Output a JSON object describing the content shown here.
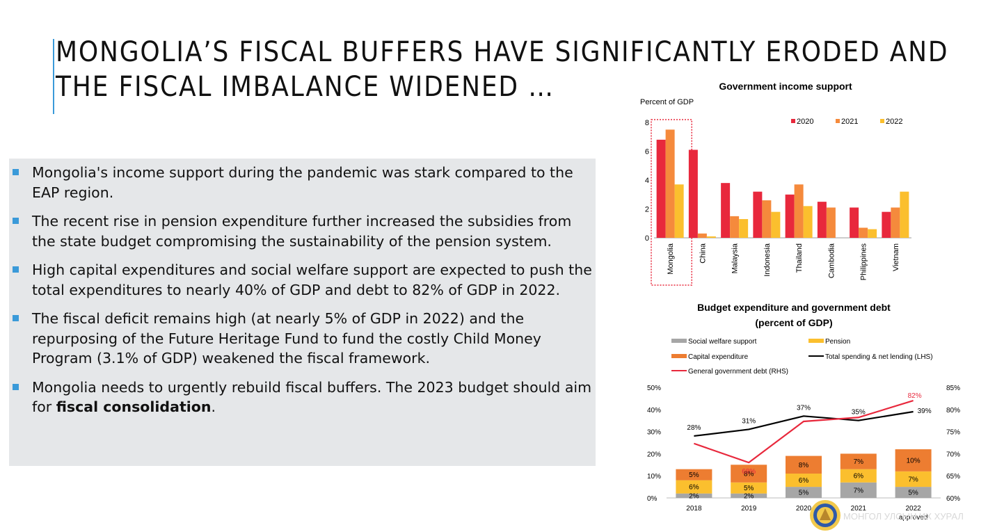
{
  "slide": {
    "title_line1": "MONGOLIA’S FISCAL BUFFERS HAVE SIGNIFICANTLY ERODED AND",
    "title_line2": "THE FISCAL IMBALANCE WIDENED …",
    "accent_color": "#3a9ad9",
    "bullets": [
      {
        "text": "Mongolia's income support during the pandemic was stark compared to the EAP region."
      },
      {
        "text": "The recent rise in pension expenditure further increased the subsidies from the state budget compromising the sustainability of the pension system."
      },
      {
        "text": "High capital expenditures and social welfare support are expected to push the total expenditures to nearly 40% of GDP and debt to 82% of GDP in 2022."
      },
      {
        "text": "The fiscal deficit remains high (at nearly 5% of GDP in 2022) and the repurposing of the Future Heritage Fund to fund the costly Child Money Program (3.1% of GDP) weakened the fiscal framework."
      },
      {
        "text_before": "Mongolia needs to urgently rebuild fiscal buffers. The 2023 budget should aim for ",
        "text_bold": "fiscal consolidation",
        "text_after": "."
      }
    ],
    "watermark_text": "МОНГОЛ УЛСЫН ИХ ХУРАЛ"
  },
  "chart_data": [
    {
      "type": "bar",
      "title": "Government income support",
      "ylabel": "Percent of GDP",
      "ylim": [
        0,
        8
      ],
      "yticks": [
        0,
        2,
        4,
        6,
        8
      ],
      "categories": [
        "Mongolia",
        "China",
        "Malaysia",
        "Indonesia",
        "Thailand",
        "Cambodia",
        "Philippines",
        "Vietnam"
      ],
      "series": [
        {
          "name": "2020",
          "color": "#e8283c",
          "values": [
            6.8,
            6.1,
            3.8,
            3.2,
            3.0,
            2.5,
            2.1,
            1.8
          ]
        },
        {
          "name": "2021",
          "color": "#f58a3c",
          "values": [
            7.5,
            0.3,
            1.5,
            2.6,
            3.7,
            2.1,
            0.7,
            2.1
          ]
        },
        {
          "name": "2022",
          "color": "#fbbf2e",
          "values": [
            3.7,
            0.1,
            1.3,
            1.8,
            2.2,
            0.0,
            0.6,
            3.2
          ]
        }
      ],
      "grid": false,
      "legend_position": "top-right",
      "highlight": "Mongolia"
    },
    {
      "type": "bar",
      "title_line1": "Budget expenditure and government debt",
      "title_line2": "(percent of GDP)",
      "categories": [
        "2018",
        "2019",
        "2020",
        "2021",
        "2022"
      ],
      "category_sublabels": [
        "",
        "",
        "",
        "",
        "approved"
      ],
      "left_axis": {
        "ticks": [
          "0%",
          "10%",
          "20%",
          "30%",
          "40%",
          "50%"
        ],
        "range": [
          0,
          50
        ]
      },
      "right_axis": {
        "ticks": [
          "60%",
          "65%",
          "70%",
          "75%",
          "80%",
          "85%"
        ],
        "range": [
          60,
          85
        ]
      },
      "stacked_series": [
        {
          "name": "Social welfare support",
          "color": "#a6a6a6",
          "values": [
            2,
            2,
            5,
            7,
            5
          ],
          "labels": [
            "2%",
            "2%",
            "5%",
            "7%",
            "5%"
          ]
        },
        {
          "name": "Pension",
          "color": "#fbbf2e",
          "values": [
            6,
            5,
            6,
            6,
            7
          ],
          "labels": [
            "6%",
            "5%",
            "6%",
            "6%",
            "7%"
          ]
        },
        {
          "name": "Capital expenditure",
          "color": "#ed7d31",
          "values": [
            5,
            8,
            8,
            7,
            10
          ],
          "labels": [
            "5%",
            "8%",
            "8%",
            "7%",
            "10%"
          ]
        }
      ],
      "line_series": [
        {
          "name": "Total spending & net lending (LHS)",
          "color": "#000000",
          "axis": "left",
          "values": [
            28,
            31,
            37,
            35,
            39
          ],
          "labels": [
            "28%",
            "31%",
            "37%",
            "35%",
            "39%"
          ]
        },
        {
          "name": "General government debt (RHS)",
          "color": "#e8283c",
          "axis": "right",
          "values": [
            72.3,
            68,
            77.3,
            78.2,
            82
          ],
          "labels": [
            "",
            "68%",
            "",
            "",
            "82%"
          ]
        }
      ],
      "grid": false,
      "legend_position": "top"
    }
  ]
}
